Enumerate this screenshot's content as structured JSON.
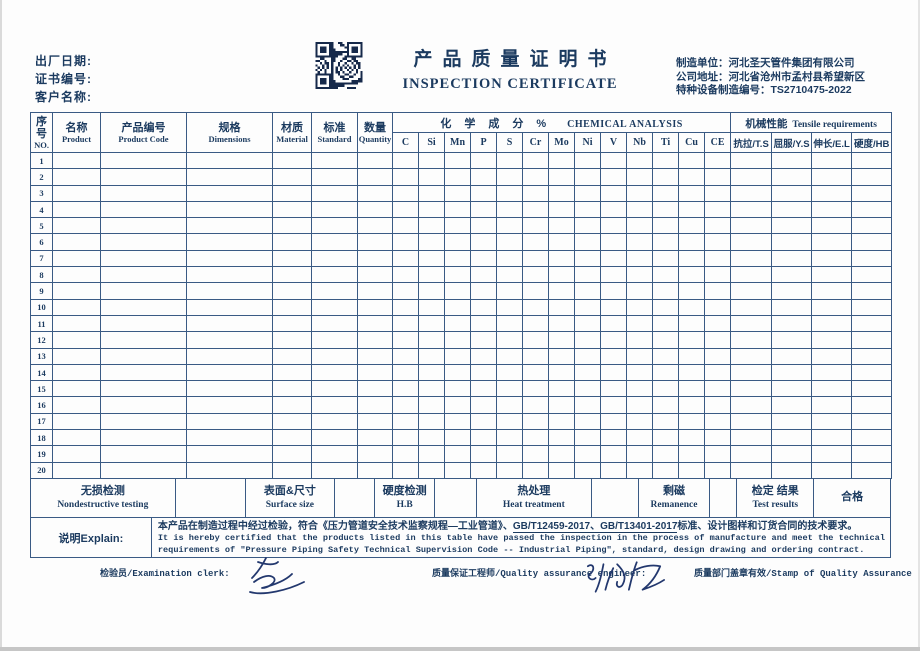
{
  "colors": {
    "ink": "#1b3a5f",
    "table_line": "#3a5a84",
    "signature_ink": "#23386e"
  },
  "header": {
    "left_fields": [
      {
        "label": "出厂日期:"
      },
      {
        "label": "证书编号:"
      },
      {
        "label": "客户名称:"
      }
    ],
    "qr_icon": "qr-code",
    "title_cn": "产品质量证明书",
    "title_en": "INSPECTION CERTIFICATE",
    "right_lines": [
      {
        "label": "制造单位：",
        "value": "河北圣天管件集团有限公司"
      },
      {
        "label": "公司地址：",
        "value": "河北省沧州市孟村县希望新区"
      },
      {
        "label": "特种设备制造编号：",
        "value": "TS2710475-2022"
      }
    ]
  },
  "table": {
    "cols": [
      {
        "cn": "序号",
        "en": "NO."
      },
      {
        "cn": "名称",
        "en": "Product"
      },
      {
        "cn": "产品编号",
        "en": "Product Code"
      },
      {
        "cn": "规格",
        "en": "Dimensions"
      },
      {
        "cn": "材质",
        "en": "Material"
      },
      {
        "cn": "标准",
        "en": "Standard"
      },
      {
        "cn": "数量",
        "en": "Quantity"
      }
    ],
    "chem_group_cn": "化学成分%",
    "chem_group_en": "CHEMICAL ANALYSIS",
    "elements": [
      "C",
      "Si",
      "Mn",
      "P",
      "S",
      "Cr",
      "Mo",
      "Ni",
      "V",
      "Nb",
      "Ti",
      "Cu",
      "CE"
    ],
    "mech_group_cn": "机械性能",
    "mech_group_en": "Tensile requirements",
    "mech_cols": [
      "抗拉/T.S",
      "屈服/Y.S",
      "伸长/E.L",
      "硬度/HB"
    ],
    "row_numbers": [
      1,
      2,
      3,
      4,
      5,
      6,
      7,
      8,
      9,
      10,
      11,
      12,
      13,
      14,
      15,
      16,
      17,
      18,
      19,
      20
    ],
    "row_cells_empty": true
  },
  "summary": {
    "cells": [
      {
        "cn": "无损检测",
        "en": "Nondestructive testing"
      },
      {
        "cn": "",
        "en": ""
      },
      {
        "cn": "表面&尺寸",
        "en": "Surface size"
      },
      {
        "cn": "",
        "en": ""
      },
      {
        "cn": "硬度检测",
        "en": "H.B"
      },
      {
        "cn": "",
        "en": ""
      },
      {
        "cn": "热处理",
        "en": "Heat treatment"
      },
      {
        "cn": "",
        "en": ""
      },
      {
        "cn": "剩磁",
        "en": "Remanence"
      },
      {
        "cn": "",
        "en": ""
      },
      {
        "cn": "检定 结果",
        "en": "Test results"
      },
      {
        "cn": "合格",
        "en": ""
      }
    ]
  },
  "explain": {
    "label": "说明Explain:",
    "line_cn_pre": "本产品在制造过程中经过检验，符合《压力管道安全技术监察规程—工业管道》、",
    "line_cn_underline": "GB/T12459-2017、GB/T13401-2017",
    "line_cn_post": "标准、设计图样和订货合同的技术要求。",
    "line_en1": "It is hereby certified that the products listed in this table have passed the inspection in the process of manufacture and meet the technical",
    "line_en2": "requirements of \"Pressure Piping Safety Technical Supervision Code -- Industrial Piping\", standard, design drawing and ordering contract."
  },
  "footer": {
    "examiner_label": "检验员/Examination clerk:",
    "qa_engineer_label": "质量保证工程师/Quality assurance engineer:",
    "stamp_label": "质量部门盖章有效/Stamp of Quality Assurance",
    "examiner_signature": "handwritten-signature",
    "qa_signature": "handwritten-signature"
  }
}
